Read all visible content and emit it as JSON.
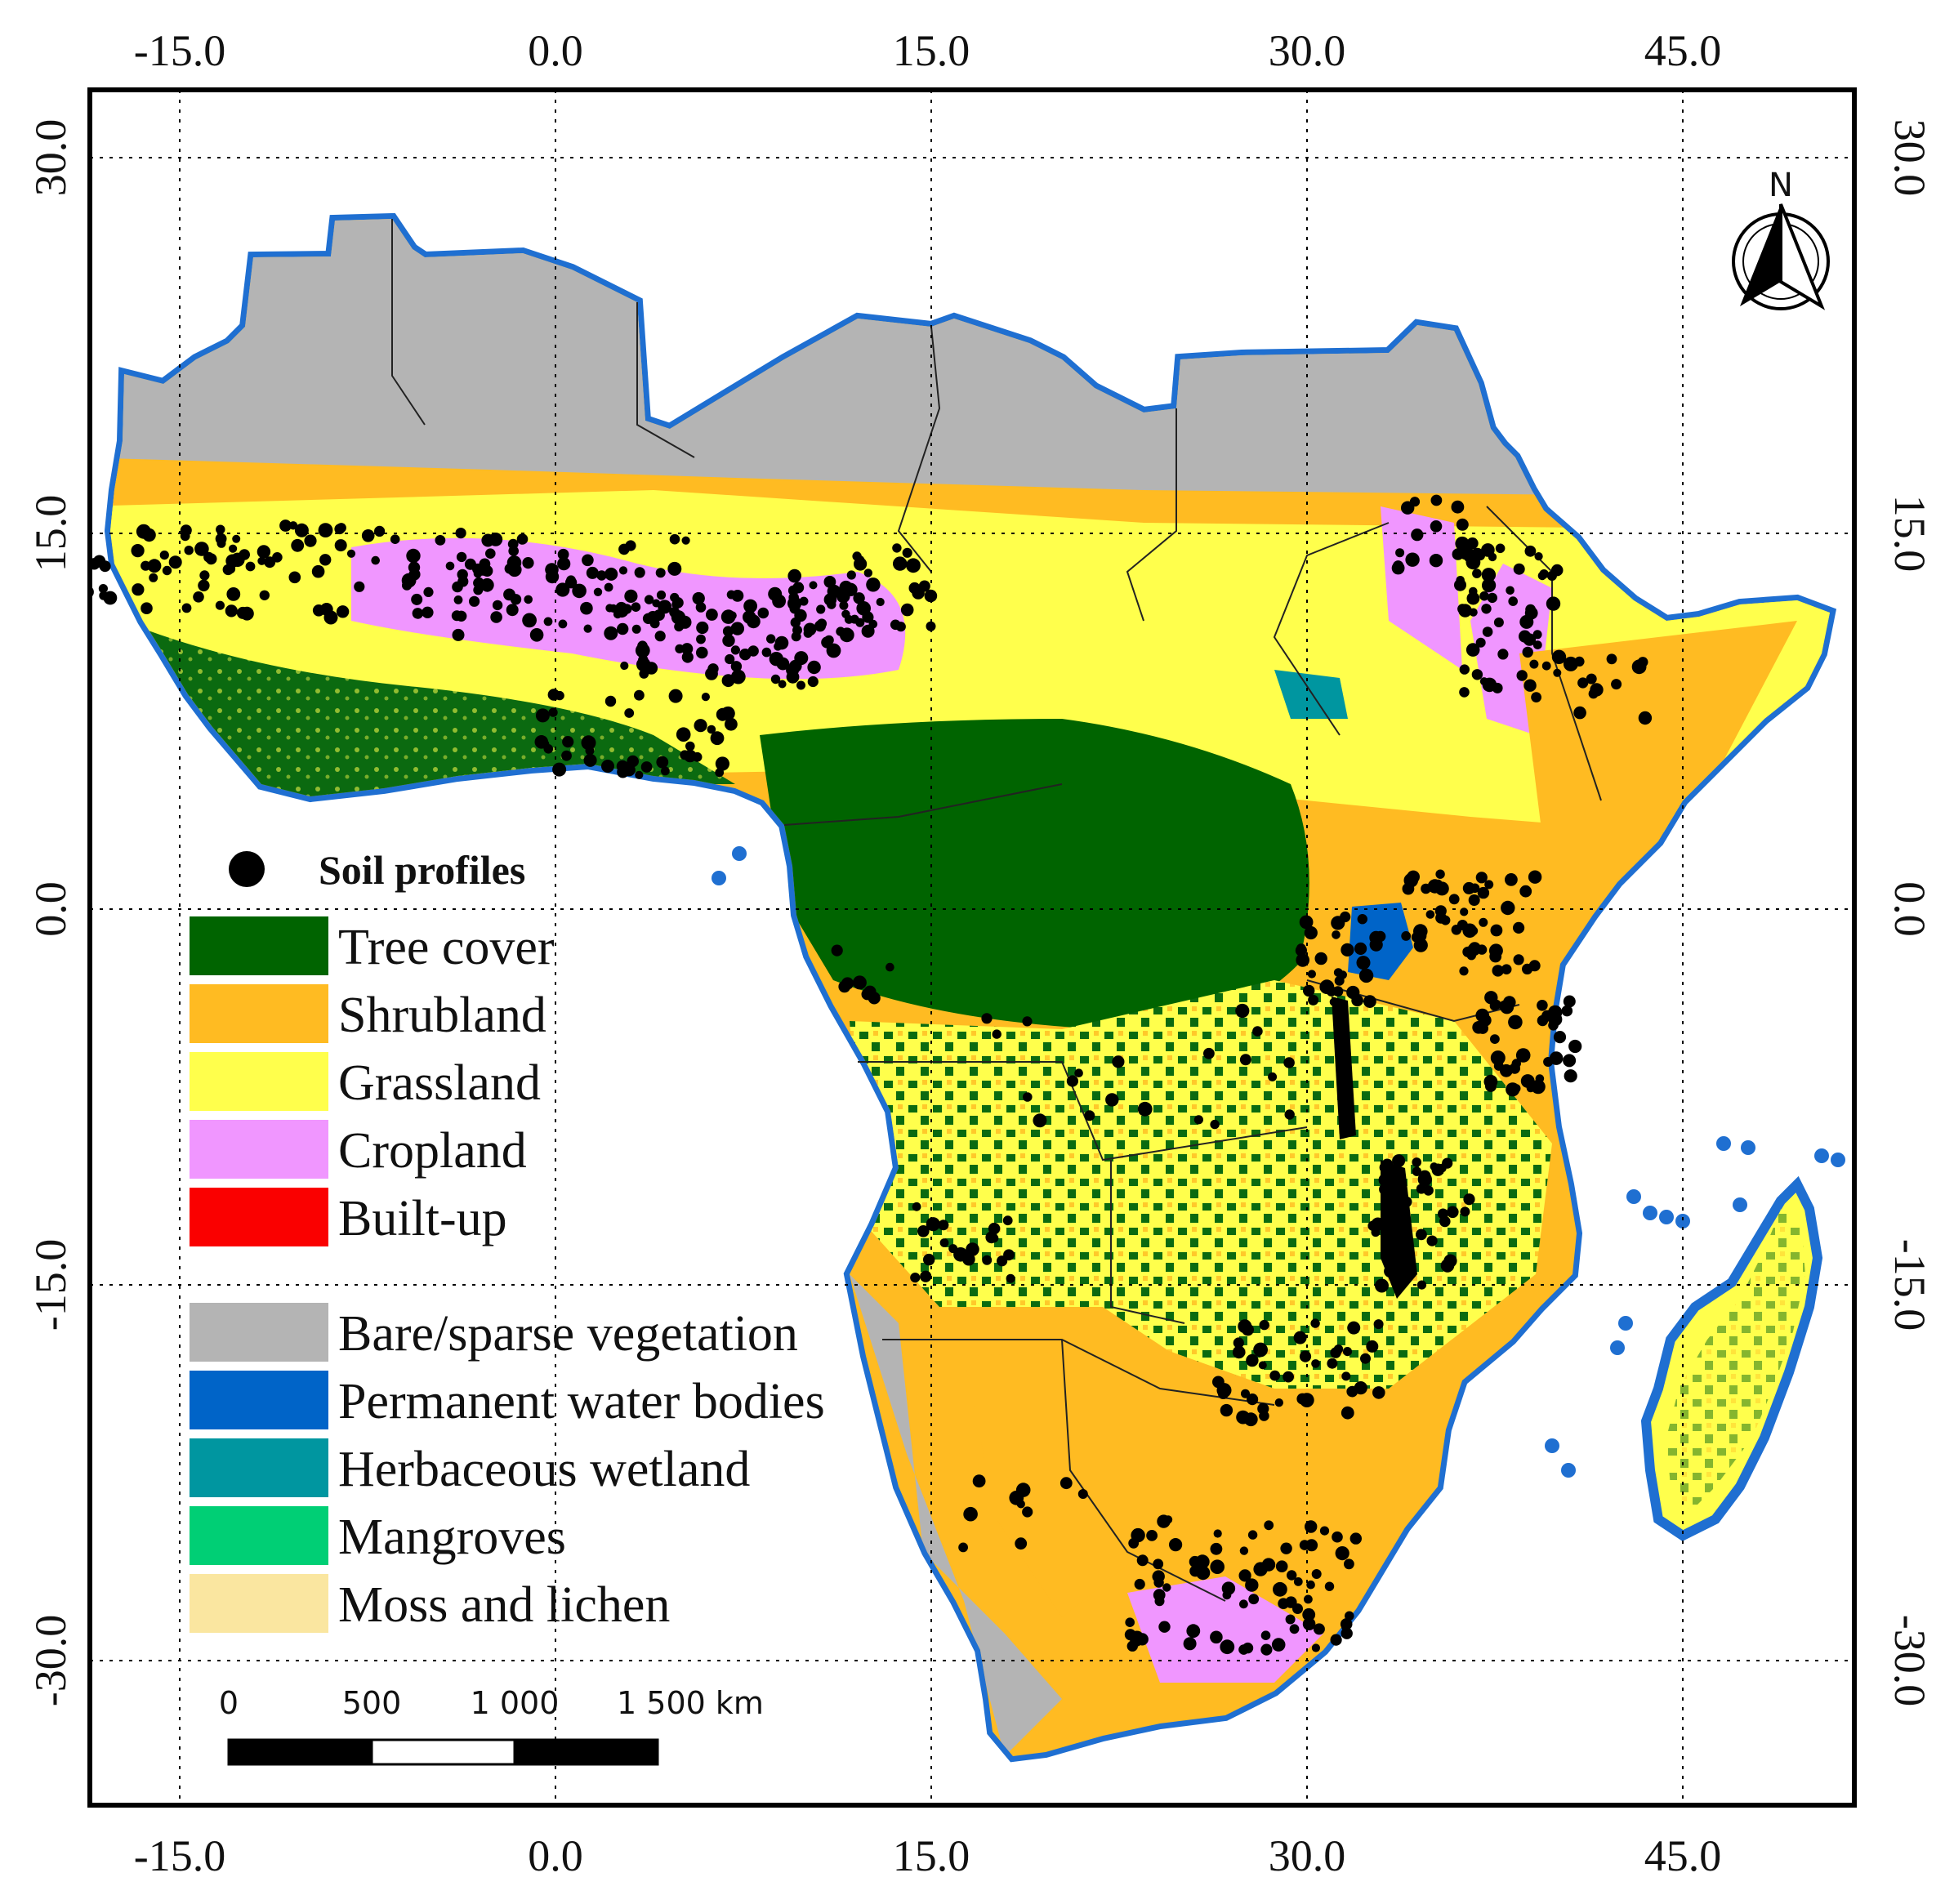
{
  "map": {
    "axes": {
      "longitude_ticks": [
        "-15.0",
        "0.0",
        "15.0",
        "30.0",
        "45.0"
      ],
      "latitude_ticks": [
        "30.0",
        "15.0",
        "0.0",
        "-15.0",
        "-30.0"
      ]
    },
    "north_arrow_label": "N",
    "scale_bar": {
      "labels": [
        "0",
        "500",
        "1 000",
        "1 500 km"
      ]
    },
    "legend": {
      "points": {
        "label": "Soil profiles",
        "color": "#000000"
      },
      "classes": [
        {
          "label": "Tree cover",
          "color": "#006400"
        },
        {
          "label": "Shrubland",
          "color": "#ffbb22"
        },
        {
          "label": "Grassland",
          "color": "#ffff4c"
        },
        {
          "label": "Cropland",
          "color": "#f096ff"
        },
        {
          "label": "Built-up",
          "color": "#fa0000"
        },
        {
          "label": "Bare/sparse vegetation",
          "color": "#b4b4b4"
        },
        {
          "label": "Permanent water bodies",
          "color": "#0064c8"
        },
        {
          "label": "Herbaceous wetland",
          "color": "#0096a0"
        },
        {
          "label": "Mangroves",
          "color": "#00cf75"
        },
        {
          "label": "Moss and lichen",
          "color": "#fae6a0"
        }
      ]
    },
    "colors": {
      "coastline": "#1f6fd1",
      "frame": "#000000",
      "gridline": "#000000"
    }
  }
}
